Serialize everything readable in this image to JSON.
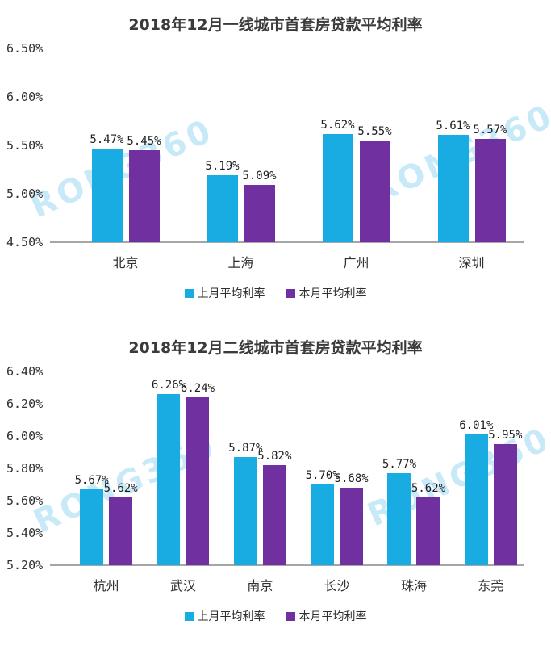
{
  "watermark": {
    "text": "RONG360",
    "color": "#29ABE2"
  },
  "chart_data": [
    {
      "type": "bar",
      "title": "2018年12月一线城市首套房贷款平均利率",
      "categories": [
        "北京",
        "上海",
        "广州",
        "深圳"
      ],
      "series": [
        {
          "name": "上月平均利率",
          "color": "#18ACE3",
          "values": [
            5.47,
            5.19,
            5.62,
            5.61
          ],
          "labels": [
            "5.47%",
            "5.19%",
            "5.62%",
            "5.61%"
          ]
        },
        {
          "name": "本月平均利率",
          "color": "#7030A0",
          "values": [
            5.45,
            5.09,
            5.55,
            5.57
          ],
          "labels": [
            "5.45%",
            "5.09%",
            "5.55%",
            "5.57%"
          ]
        }
      ],
      "xlabel": "",
      "ylabel": "",
      "ylim": [
        4.5,
        6.5
      ],
      "yticks": [
        {
          "v": 6.5,
          "label": "6.50%"
        },
        {
          "v": 6.0,
          "label": "6.00%"
        },
        {
          "v": 5.5,
          "label": "5.50%"
        },
        {
          "v": 5.0,
          "label": "5.00%"
        },
        {
          "v": 4.5,
          "label": "4.50%"
        }
      ],
      "grid": false,
      "legend_position": "bottom"
    },
    {
      "type": "bar",
      "title": "2018年12月二线城市首套房贷款平均利率",
      "categories": [
        "杭州",
        "武汉",
        "南京",
        "长沙",
        "珠海",
        "东莞"
      ],
      "series": [
        {
          "name": "上月平均利率",
          "color": "#18ACE3",
          "values": [
            5.67,
            6.26,
            5.87,
            5.7,
            5.77,
            6.01
          ],
          "labels": [
            "5.67%",
            "6.26%",
            "5.87%",
            "5.70%",
            "5.77%",
            "6.01%"
          ]
        },
        {
          "name": "本月平均利率",
          "color": "#7030A0",
          "values": [
            5.62,
            6.24,
            5.82,
            5.68,
            5.62,
            5.95
          ],
          "labels": [
            "5.62%",
            "6.24%",
            "5.82%",
            "5.68%",
            "5.62%",
            "5.95%"
          ]
        }
      ],
      "xlabel": "",
      "ylabel": "",
      "ylim": [
        5.2,
        6.4
      ],
      "yticks": [
        {
          "v": 6.4,
          "label": "6.40%"
        },
        {
          "v": 6.2,
          "label": "6.20%"
        },
        {
          "v": 6.0,
          "label": "6.00%"
        },
        {
          "v": 5.8,
          "label": "5.80%"
        },
        {
          "v": 5.6,
          "label": "5.60%"
        },
        {
          "v": 5.4,
          "label": "5.40%"
        },
        {
          "v": 5.2,
          "label": "5.20%"
        }
      ],
      "grid": false,
      "legend_position": "bottom"
    }
  ]
}
